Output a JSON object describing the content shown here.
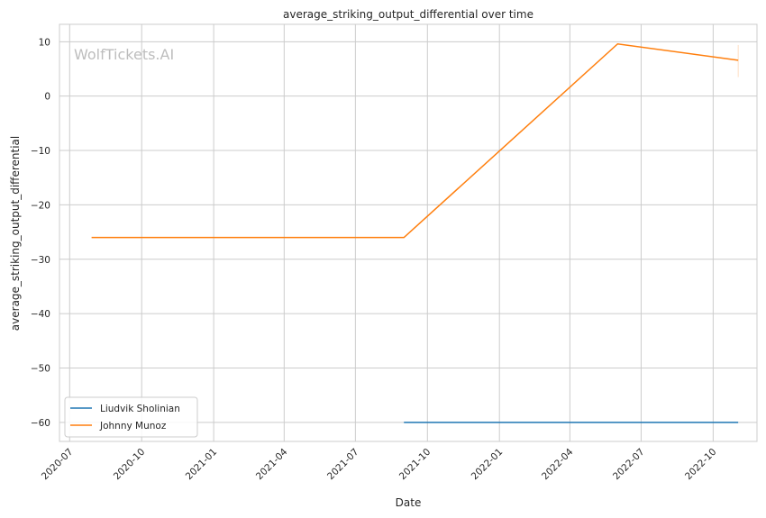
{
  "chart_data": {
    "type": "line",
    "title": "average_striking_output_differential over time",
    "xlabel": "Date",
    "ylabel": "average_striking_output_differential",
    "watermark": "WolfTickets.AI",
    "xlim": [
      "2020-06-18",
      "2022-11-26"
    ],
    "ylim": [
      -63.5,
      13.2
    ],
    "yticks": [
      10,
      0,
      -10,
      -20,
      -30,
      -40,
      -50,
      -60
    ],
    "ytick_labels": [
      "10",
      "0",
      "−10",
      "−20",
      "−30",
      "−40",
      "−50",
      "−60"
    ],
    "xticks": [
      "2020-07",
      "2020-10",
      "2021-01",
      "2021-04",
      "2021-07",
      "2021-10",
      "2022-01",
      "2022-04",
      "2022-07",
      "2022-10"
    ],
    "grid": true,
    "legend_position": "lower-left",
    "series": [
      {
        "name": "Liudvik Sholinian",
        "color": "#1f77b4",
        "x": [
          "2021-09-01",
          "2022-11-02"
        ],
        "y": [
          -60,
          -60
        ]
      },
      {
        "name": "Johnny Munoz",
        "color": "#ff7f0e",
        "x": [
          "2020-07-29",
          "2021-09-01",
          "2022-06-01",
          "2022-11-02"
        ],
        "y": [
          -26,
          -26,
          9.6,
          6.6
        ],
        "error_band": {
          "x": "2022-11-02",
          "low": 3.5,
          "high": 9.4
        }
      }
    ]
  }
}
